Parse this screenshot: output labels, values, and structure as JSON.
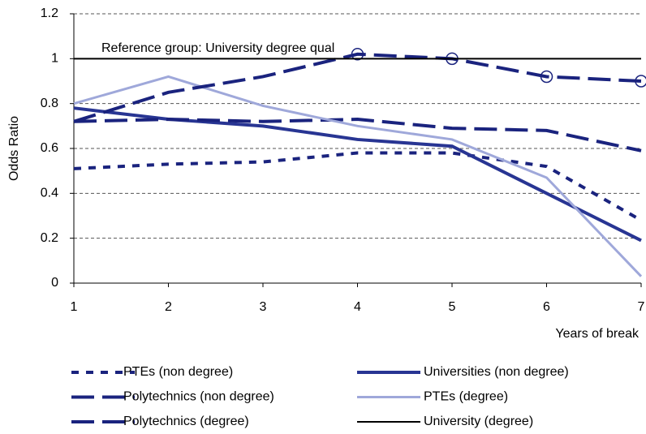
{
  "chart_data": {
    "type": "line",
    "annotation": "Reference group: University degree qual",
    "x_label": "Years of break",
    "y_label": "Odds Ratio",
    "x": [
      1,
      2,
      3,
      4,
      5,
      6,
      7
    ],
    "xlim": [
      1,
      7
    ],
    "xticks": [
      1,
      2,
      3,
      4,
      5,
      6,
      7
    ],
    "ylim": [
      0,
      1.2
    ],
    "yticks": [
      0,
      0.2,
      0.4,
      0.6,
      0.8,
      1,
      1.2
    ],
    "grid": true,
    "series": [
      {
        "name": "PTEs (non degree)",
        "color": "#1a237e",
        "style": "short-dash",
        "values": [
          0.51,
          0.53,
          0.54,
          0.58,
          0.58,
          0.52,
          0.28
        ]
      },
      {
        "name": "Universities (non degree)",
        "color": "#283593",
        "style": "solid-thick",
        "values": [
          0.78,
          0.73,
          0.7,
          0.64,
          0.61,
          0.4,
          0.19
        ]
      },
      {
        "name": "Polytechnics (non degree)",
        "color": "#1a237e",
        "style": "long-dash",
        "values": [
          0.72,
          0.73,
          0.72,
          0.73,
          0.69,
          0.68,
          0.59
        ]
      },
      {
        "name": "PTEs (degree)",
        "color": "#9fa8da",
        "style": "solid-light",
        "values": [
          0.8,
          0.92,
          0.79,
          0.7,
          0.64,
          0.47,
          0.03
        ]
      },
      {
        "name": "Polytechnics (degree)",
        "color": "#1a237e",
        "style": "long-dash-circle",
        "values": [
          0.72,
          0.85,
          0.92,
          1.02,
          1.0,
          0.92,
          0.9
        ]
      },
      {
        "name": "University (degree)",
        "color": "#000000",
        "style": "solid",
        "values": [
          1,
          1,
          1,
          1,
          1,
          1,
          1
        ]
      }
    ]
  }
}
